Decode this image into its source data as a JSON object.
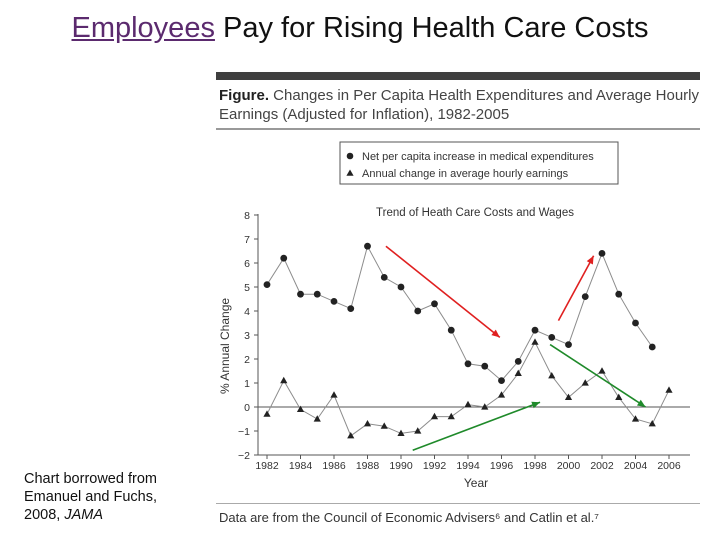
{
  "slide": {
    "title_highlight": "Employees",
    "title_rest": " Pay for Rising Health Care Costs",
    "credit_line1": "Chart borrowed from",
    "credit_line2": "Emanuel and Fuchs,",
    "credit_line3_prefix": "2008, ",
    "credit_line3_italic": "JAMA"
  },
  "figure": {
    "label": "Figure.",
    "caption_rest": " Changes in Per Capita Health Expenditures and Average Hourly Earnings (Adjusted for Inflation), 1982-2005",
    "footer": "Data are from the Council of Economic Advisers⁶ and Catlin et al.⁷"
  },
  "chart_data": {
    "type": "line",
    "title": "Trend of Heath Care Costs and Wages",
    "xlabel": "Year",
    "ylabel": "% Annual Change",
    "xlim": [
      1981.5,
      2006.3
    ],
    "ylim": [
      -2,
      8
    ],
    "xticks": [
      1982,
      1984,
      1986,
      1988,
      1990,
      1992,
      1994,
      1996,
      1998,
      2000,
      2002,
      2004,
      2006
    ],
    "yticks": [
      -2,
      -1,
      0,
      1,
      2,
      3,
      4,
      5,
      6,
      7,
      8
    ],
    "legend_position": "top",
    "series": [
      {
        "name": "Net per capita increase in medical expenditures",
        "marker": "circle",
        "x": [
          1982,
          1983,
          1984,
          1985,
          1986,
          1987,
          1988,
          1989,
          1990,
          1991,
          1992,
          1993,
          1994,
          1995,
          1996,
          1997,
          1998,
          1999,
          2000,
          2001,
          2002,
          2003,
          2004,
          2005
        ],
        "y": [
          5.1,
          6.2,
          4.7,
          4.7,
          4.4,
          4.1,
          6.7,
          5.4,
          5.0,
          4.0,
          4.3,
          3.2,
          1.8,
          1.7,
          1.1,
          1.9,
          3.2,
          2.9,
          2.6,
          4.6,
          6.4,
          4.7,
          3.5,
          2.5
        ]
      },
      {
        "name": "Annual change in average hourly earnings",
        "marker": "triangle",
        "x": [
          1982,
          1983,
          1984,
          1985,
          1986,
          1987,
          1988,
          1989,
          1990,
          1991,
          1992,
          1993,
          1994,
          1995,
          1996,
          1997,
          1998,
          1999,
          2000,
          2001,
          2002,
          2003,
          2004,
          2005,
          2006
        ],
        "y": [
          -0.3,
          1.1,
          -0.1,
          -0.5,
          0.5,
          -1.2,
          -0.7,
          -0.8,
          -1.1,
          -1.0,
          -0.4,
          -0.4,
          0.1,
          0.0,
          0.5,
          1.4,
          2.7,
          1.3,
          0.4,
          1.0,
          1.5,
          0.4,
          -0.5,
          -0.7,
          0.7
        ]
      }
    ],
    "annotations": [
      {
        "type": "arrow",
        "color": "#e02020",
        "from": [
          1989.1,
          6.7
        ],
        "to": [
          1995.9,
          2.9
        ]
      },
      {
        "type": "arrow",
        "color": "#e02020",
        "from": [
          1999.4,
          3.6
        ],
        "to": [
          2001.5,
          6.3
        ]
      },
      {
        "type": "arrow",
        "color": "#1f8a2a",
        "from": [
          1990.7,
          -1.8
        ],
        "to": [
          1998.3,
          0.2
        ]
      },
      {
        "type": "arrow",
        "color": "#1f8a2a",
        "from": [
          1998.9,
          2.6
        ],
        "to": [
          2004.6,
          0.0
        ]
      }
    ]
  }
}
